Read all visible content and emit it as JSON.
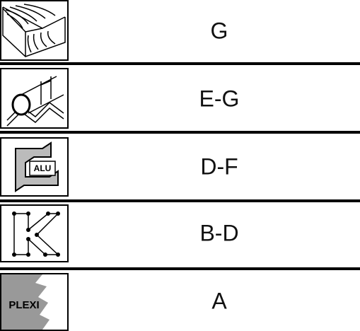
{
  "rows": [
    {
      "label": "G"
    },
    {
      "label": "E-G"
    },
    {
      "label": "D-F",
      "icon_text": "ALU"
    },
    {
      "label": "B-D"
    },
    {
      "label": "A",
      "icon_text": "PLEXI"
    }
  ]
}
